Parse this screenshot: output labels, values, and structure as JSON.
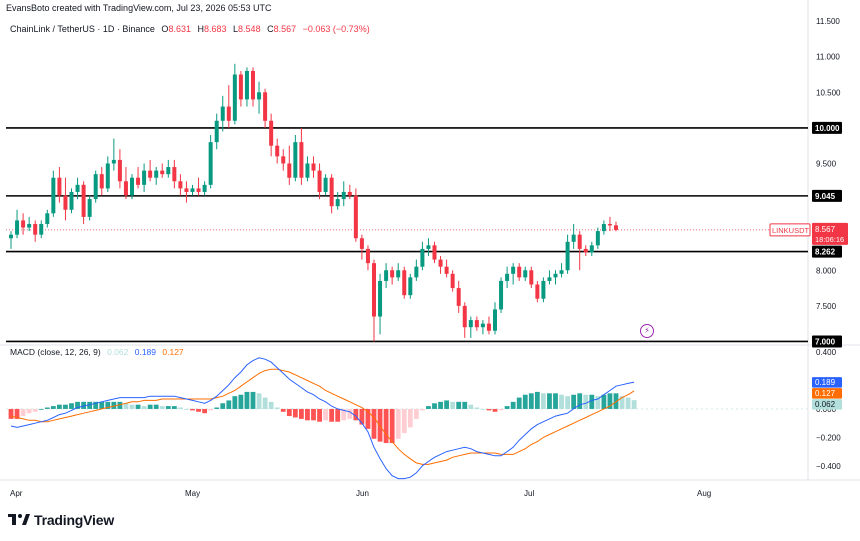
{
  "header": {
    "credit": "EvansBoto created with TradingView.com, Jul 23, 2026 05:53 UTC"
  },
  "legend": {
    "symbol": "ChainLink / TetherUS · 1D · Binance",
    "open_label": "O",
    "open": "8.631",
    "high_label": "H",
    "high": "8.683",
    "low_label": "L",
    "low": "8.548",
    "close_label": "C",
    "close": "8.567",
    "change": "−0.063 (−0.73%)"
  },
  "macd_legend": {
    "label": "MACD (close, 12, 26, 9)",
    "hist": "0.062",
    "macd": "0.189",
    "signal": "0.127"
  },
  "brand": {
    "name": "TradingView"
  },
  "colors": {
    "up": "#089981",
    "down": "#f23645",
    "macd_line": "#2962ff",
    "signal_line": "#ff6d00",
    "hist_up_strong": "#26a69a",
    "hist_up_weak": "#b2dfdb",
    "hist_down_strong": "#ff5252",
    "hist_down_weak": "#ffcdd2",
    "level_line": "#000000",
    "price_line": "#f23645"
  },
  "chart_data": [
    {
      "type": "candlestick",
      "title": "ChainLink / TetherUS · 1D · Binance",
      "y_ticks": [
        "11.500",
        "11.000",
        "10.500",
        "10.000",
        "9.500",
        "9.045",
        "8.567",
        "8.262",
        "8.000",
        "7.500",
        "7.000"
      ],
      "ylim": [
        6.95,
        11.6
      ],
      "x_labels": [
        "Apr",
        "May",
        "Jun",
        "Jul",
        "Aug"
      ],
      "horizontal_levels": [
        10.0,
        9.045,
        8.262,
        7.0
      ],
      "highlighted_levels": [
        "10.000",
        "9.045",
        "8.262",
        "7.000"
      ],
      "last_price": {
        "symbol": "LINKUSDT",
        "value": "8.567",
        "countdown": "18:06:16"
      },
      "candles": [
        {
          "o": 8.45,
          "h": 8.55,
          "l": 8.3,
          "c": 8.5
        },
        {
          "o": 8.5,
          "h": 8.85,
          "l": 8.45,
          "c": 8.7
        },
        {
          "o": 8.7,
          "h": 8.8,
          "l": 8.5,
          "c": 8.6
        },
        {
          "o": 8.6,
          "h": 8.75,
          "l": 8.55,
          "c": 8.65
        },
        {
          "o": 8.65,
          "h": 8.7,
          "l": 8.4,
          "c": 8.5
        },
        {
          "o": 8.5,
          "h": 8.7,
          "l": 8.45,
          "c": 8.65
        },
        {
          "o": 8.65,
          "h": 8.85,
          "l": 8.6,
          "c": 8.8
        },
        {
          "o": 8.8,
          "h": 9.4,
          "l": 8.75,
          "c": 9.3
        },
        {
          "o": 9.3,
          "h": 9.45,
          "l": 8.95,
          "c": 9.05
        },
        {
          "o": 9.05,
          "h": 9.3,
          "l": 8.7,
          "c": 8.85
        },
        {
          "o": 8.85,
          "h": 9.15,
          "l": 8.8,
          "c": 9.1
        },
        {
          "o": 9.1,
          "h": 9.3,
          "l": 9.0,
          "c": 9.2
        },
        {
          "o": 9.2,
          "h": 9.25,
          "l": 8.65,
          "c": 8.75
        },
        {
          "o": 8.75,
          "h": 9.05,
          "l": 8.7,
          "c": 9.0
        },
        {
          "o": 9.0,
          "h": 9.4,
          "l": 8.95,
          "c": 9.35
        },
        {
          "o": 9.35,
          "h": 9.45,
          "l": 9.05,
          "c": 9.15
        },
        {
          "o": 9.15,
          "h": 9.6,
          "l": 9.1,
          "c": 9.5
        },
        {
          "o": 9.5,
          "h": 9.85,
          "l": 9.4,
          "c": 9.55
        },
        {
          "o": 9.55,
          "h": 9.7,
          "l": 9.15,
          "c": 9.25
        },
        {
          "o": 9.25,
          "h": 9.45,
          "l": 9.0,
          "c": 9.05
        },
        {
          "o": 9.05,
          "h": 9.35,
          "l": 9.0,
          "c": 9.3
        },
        {
          "o": 9.3,
          "h": 9.45,
          "l": 9.15,
          "c": 9.2
        },
        {
          "o": 9.2,
          "h": 9.5,
          "l": 9.1,
          "c": 9.4
        },
        {
          "o": 9.4,
          "h": 9.55,
          "l": 9.25,
          "c": 9.3
        },
        {
          "o": 9.3,
          "h": 9.45,
          "l": 9.2,
          "c": 9.4
        },
        {
          "o": 9.4,
          "h": 9.5,
          "l": 9.3,
          "c": 9.35
        },
        {
          "o": 9.35,
          "h": 9.55,
          "l": 9.3,
          "c": 9.45
        },
        {
          "o": 9.45,
          "h": 9.55,
          "l": 9.15,
          "c": 9.25
        },
        {
          "o": 9.25,
          "h": 9.35,
          "l": 9.05,
          "c": 9.15
        },
        {
          "o": 9.15,
          "h": 9.25,
          "l": 8.95,
          "c": 9.1
        },
        {
          "o": 9.1,
          "h": 9.2,
          "l": 9.05,
          "c": 9.15
        },
        {
          "o": 9.15,
          "h": 9.3,
          "l": 9.05,
          "c": 9.1
        },
        {
          "o": 9.1,
          "h": 9.25,
          "l": 9.05,
          "c": 9.2
        },
        {
          "o": 9.2,
          "h": 9.9,
          "l": 9.15,
          "c": 9.8
        },
        {
          "o": 9.8,
          "h": 10.2,
          "l": 9.7,
          "c": 10.1
        },
        {
          "o": 10.1,
          "h": 10.45,
          "l": 9.95,
          "c": 10.3
        },
        {
          "o": 10.3,
          "h": 10.6,
          "l": 10.0,
          "c": 10.1
        },
        {
          "o": 10.1,
          "h": 10.9,
          "l": 10.05,
          "c": 10.75
        },
        {
          "o": 10.75,
          "h": 10.8,
          "l": 10.3,
          "c": 10.4
        },
        {
          "o": 10.4,
          "h": 10.85,
          "l": 10.3,
          "c": 10.8
        },
        {
          "o": 10.8,
          "h": 10.85,
          "l": 10.3,
          "c": 10.4
        },
        {
          "o": 10.4,
          "h": 10.65,
          "l": 10.2,
          "c": 10.5
        },
        {
          "o": 10.5,
          "h": 10.55,
          "l": 10.0,
          "c": 10.1
        },
        {
          "o": 10.1,
          "h": 10.2,
          "l": 9.6,
          "c": 9.75
        },
        {
          "o": 9.75,
          "h": 9.85,
          "l": 9.5,
          "c": 9.6
        },
        {
          "o": 9.6,
          "h": 9.7,
          "l": 9.4,
          "c": 9.5
        },
        {
          "o": 9.5,
          "h": 9.75,
          "l": 9.2,
          "c": 9.3
        },
        {
          "o": 9.3,
          "h": 9.9,
          "l": 9.25,
          "c": 9.8
        },
        {
          "o": 9.8,
          "h": 10.0,
          "l": 9.2,
          "c": 9.3
        },
        {
          "o": 9.3,
          "h": 9.6,
          "l": 9.25,
          "c": 9.5
        },
        {
          "o": 9.5,
          "h": 9.6,
          "l": 9.3,
          "c": 9.4
        },
        {
          "o": 9.4,
          "h": 9.5,
          "l": 9.0,
          "c": 9.1
        },
        {
          "o": 9.1,
          "h": 9.35,
          "l": 9.05,
          "c": 9.3
        },
        {
          "o": 9.3,
          "h": 9.35,
          "l": 8.8,
          "c": 8.9
        },
        {
          "o": 8.9,
          "h": 9.1,
          "l": 8.85,
          "c": 9.0
        },
        {
          "o": 9.0,
          "h": 9.25,
          "l": 8.9,
          "c": 9.1
        },
        {
          "o": 9.1,
          "h": 9.2,
          "l": 9.0,
          "c": 9.05
        },
        {
          "o": 9.05,
          "h": 9.15,
          "l": 8.4,
          "c": 8.45
        },
        {
          "o": 8.45,
          "h": 8.5,
          "l": 8.15,
          "c": 8.3
        },
        {
          "o": 8.3,
          "h": 8.35,
          "l": 8.0,
          "c": 8.1
        },
        {
          "o": 8.1,
          "h": 8.15,
          "l": 7.0,
          "c": 7.35
        },
        {
          "o": 7.35,
          "h": 7.95,
          "l": 7.1,
          "c": 7.85
        },
        {
          "o": 7.85,
          "h": 8.1,
          "l": 7.75,
          "c": 8.0
        },
        {
          "o": 8.0,
          "h": 8.05,
          "l": 7.8,
          "c": 7.9
        },
        {
          "o": 7.9,
          "h": 8.1,
          "l": 7.85,
          "c": 8.0
        },
        {
          "o": 8.0,
          "h": 8.05,
          "l": 7.6,
          "c": 7.65
        },
        {
          "o": 7.65,
          "h": 7.95,
          "l": 7.6,
          "c": 7.9
        },
        {
          "o": 7.9,
          "h": 8.15,
          "l": 7.85,
          "c": 8.05
        },
        {
          "o": 8.05,
          "h": 8.4,
          "l": 8.0,
          "c": 8.3
        },
        {
          "o": 8.3,
          "h": 8.45,
          "l": 8.2,
          "c": 8.35
        },
        {
          "o": 8.35,
          "h": 8.4,
          "l": 8.1,
          "c": 8.15
        },
        {
          "o": 8.15,
          "h": 8.2,
          "l": 7.95,
          "c": 8.05
        },
        {
          "o": 8.05,
          "h": 8.15,
          "l": 7.9,
          "c": 7.95
        },
        {
          "o": 7.95,
          "h": 8.0,
          "l": 7.7,
          "c": 7.75
        },
        {
          "o": 7.75,
          "h": 7.85,
          "l": 7.4,
          "c": 7.5
        },
        {
          "o": 7.5,
          "h": 7.55,
          "l": 7.05,
          "c": 7.2
        },
        {
          "o": 7.2,
          "h": 7.35,
          "l": 7.05,
          "c": 7.3
        },
        {
          "o": 7.3,
          "h": 7.35,
          "l": 7.15,
          "c": 7.2
        },
        {
          "o": 7.2,
          "h": 7.3,
          "l": 7.1,
          "c": 7.25
        },
        {
          "o": 7.25,
          "h": 7.35,
          "l": 7.1,
          "c": 7.15
        },
        {
          "o": 7.15,
          "h": 7.55,
          "l": 7.1,
          "c": 7.45
        },
        {
          "o": 7.45,
          "h": 7.9,
          "l": 7.4,
          "c": 7.85
        },
        {
          "o": 7.85,
          "h": 8.05,
          "l": 7.75,
          "c": 7.95
        },
        {
          "o": 7.95,
          "h": 8.1,
          "l": 7.8,
          "c": 8.05
        },
        {
          "o": 8.05,
          "h": 8.1,
          "l": 7.85,
          "c": 7.9
        },
        {
          "o": 7.9,
          "h": 8.05,
          "l": 7.85,
          "c": 8.0
        },
        {
          "o": 8.0,
          "h": 8.05,
          "l": 7.75,
          "c": 7.8
        },
        {
          "o": 7.8,
          "h": 7.85,
          "l": 7.55,
          "c": 7.6
        },
        {
          "o": 7.6,
          "h": 7.9,
          "l": 7.55,
          "c": 7.85
        },
        {
          "o": 7.85,
          "h": 8.0,
          "l": 7.8,
          "c": 7.9
        },
        {
          "o": 7.9,
          "h": 8.0,
          "l": 7.8,
          "c": 7.95
        },
        {
          "o": 7.95,
          "h": 8.1,
          "l": 7.9,
          "c": 8.0
        },
        {
          "o": 8.0,
          "h": 8.5,
          "l": 7.95,
          "c": 8.4
        },
        {
          "o": 8.4,
          "h": 8.65,
          "l": 8.3,
          "c": 8.5
        },
        {
          "o": 8.5,
          "h": 8.55,
          "l": 8.0,
          "c": 8.3
        },
        {
          "o": 8.3,
          "h": 8.35,
          "l": 8.2,
          "c": 8.25
        },
        {
          "o": 8.25,
          "h": 8.4,
          "l": 8.2,
          "c": 8.35
        },
        {
          "o": 8.35,
          "h": 8.6,
          "l": 8.3,
          "c": 8.55
        },
        {
          "o": 8.55,
          "h": 8.7,
          "l": 8.5,
          "c": 8.65
        },
        {
          "o": 8.65,
          "h": 8.75,
          "l": 8.55,
          "c": 8.63
        },
        {
          "o": 8.631,
          "h": 8.683,
          "l": 8.548,
          "c": 8.567
        }
      ]
    },
    {
      "type": "line",
      "title": "MACD (close, 12, 26, 9)",
      "y_ticks": [
        "0.400",
        "0.200",
        "0.189",
        "0.127",
        "0.062",
        "0.000",
        "−0.200",
        "−0.400"
      ],
      "ylim": [
        -0.5,
        0.45
      ],
      "series": [
        {
          "name": "MACD",
          "values": [
            -0.12,
            -0.13,
            -0.12,
            -0.11,
            -0.1,
            -0.09,
            -0.08,
            -0.06,
            -0.04,
            -0.03,
            -0.01,
            0.01,
            0.02,
            0.03,
            0.04,
            0.05,
            0.06,
            0.07,
            0.08,
            0.08,
            0.08,
            0.08,
            0.08,
            0.09,
            0.09,
            0.09,
            0.09,
            0.09,
            0.08,
            0.07,
            0.06,
            0.05,
            0.04,
            0.06,
            0.09,
            0.13,
            0.17,
            0.22,
            0.26,
            0.31,
            0.34,
            0.36,
            0.35,
            0.33,
            0.29,
            0.25,
            0.21,
            0.18,
            0.15,
            0.12,
            0.1,
            0.07,
            0.05,
            0.02,
            0.0,
            -0.01,
            -0.02,
            -0.05,
            -0.1,
            -0.16,
            -0.27,
            -0.35,
            -0.42,
            -0.47,
            -0.49,
            -0.49,
            -0.48,
            -0.45,
            -0.4,
            -0.37,
            -0.34,
            -0.32,
            -0.3,
            -0.29,
            -0.28,
            -0.27,
            -0.28,
            -0.3,
            -0.31,
            -0.32,
            -0.33,
            -0.33,
            -0.3,
            -0.27,
            -0.22,
            -0.18,
            -0.14,
            -0.11,
            -0.09,
            -0.07,
            -0.05,
            -0.04,
            -0.03,
            0.0,
            0.03,
            0.04,
            0.06,
            0.07,
            0.1,
            0.13,
            0.16,
            0.17,
            0.18,
            0.189
          ]
        },
        {
          "name": "Signal",
          "values": [
            -0.05,
            -0.06,
            -0.07,
            -0.08,
            -0.08,
            -0.09,
            -0.09,
            -0.08,
            -0.07,
            -0.06,
            -0.05,
            -0.04,
            -0.03,
            -0.02,
            -0.01,
            0.0,
            0.01,
            0.02,
            0.03,
            0.04,
            0.05,
            0.05,
            0.06,
            0.06,
            0.06,
            0.07,
            0.07,
            0.07,
            0.07,
            0.07,
            0.07,
            0.07,
            0.07,
            0.07,
            0.08,
            0.09,
            0.11,
            0.13,
            0.16,
            0.19,
            0.22,
            0.25,
            0.27,
            0.28,
            0.28,
            0.27,
            0.26,
            0.24,
            0.22,
            0.2,
            0.18,
            0.16,
            0.13,
            0.11,
            0.09,
            0.07,
            0.05,
            0.03,
            0.01,
            -0.02,
            -0.06,
            -0.12,
            -0.18,
            -0.23,
            -0.28,
            -0.32,
            -0.35,
            -0.38,
            -0.39,
            -0.39,
            -0.38,
            -0.37,
            -0.36,
            -0.34,
            -0.33,
            -0.32,
            -0.31,
            -0.31,
            -0.31,
            -0.31,
            -0.31,
            -0.32,
            -0.32,
            -0.32,
            -0.3,
            -0.28,
            -0.25,
            -0.23,
            -0.2,
            -0.18,
            -0.16,
            -0.14,
            -0.12,
            -0.1,
            -0.08,
            -0.06,
            -0.04,
            -0.02,
            0.0,
            0.02,
            0.05,
            0.08,
            0.1,
            0.127
          ]
        }
      ],
      "histogram": [
        -0.07,
        -0.07,
        -0.05,
        -0.03,
        -0.02,
        0.0,
        0.01,
        0.02,
        0.03,
        0.03,
        0.04,
        0.05,
        0.05,
        0.05,
        0.05,
        0.05,
        0.05,
        0.05,
        0.05,
        0.04,
        0.03,
        0.03,
        0.02,
        0.03,
        0.03,
        0.02,
        0.02,
        0.02,
        0.01,
        0.0,
        -0.01,
        -0.02,
        -0.03,
        -0.01,
        0.01,
        0.04,
        0.06,
        0.09,
        0.1,
        0.12,
        0.12,
        0.11,
        0.08,
        0.05,
        0.01,
        -0.02,
        -0.05,
        -0.06,
        -0.07,
        -0.08,
        -0.08,
        -0.09,
        -0.08,
        -0.09,
        -0.09,
        -0.08,
        -0.07,
        -0.08,
        -0.11,
        -0.14,
        -0.21,
        -0.23,
        -0.24,
        -0.24,
        -0.21,
        -0.17,
        -0.13,
        -0.07,
        -0.01,
        0.02,
        0.04,
        0.05,
        0.06,
        0.05,
        0.05,
        0.05,
        0.03,
        0.01,
        0.0,
        -0.01,
        -0.02,
        -0.01,
        0.02,
        0.05,
        0.08,
        0.1,
        0.11,
        0.12,
        0.11,
        0.11,
        0.11,
        0.1,
        0.09,
        0.1,
        0.11,
        0.1,
        0.1,
        0.09,
        0.1,
        0.11,
        0.11,
        0.09,
        0.08,
        0.062
      ]
    }
  ]
}
